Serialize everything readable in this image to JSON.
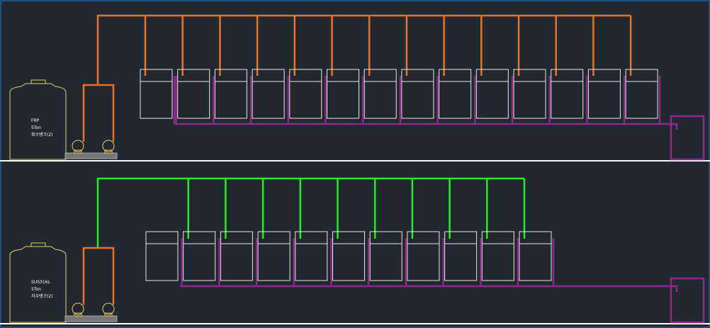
{
  "tanks": [
    {
      "material": "FRP",
      "capacity": "5Ton",
      "name": "회수탱크(2)"
    },
    {
      "material": "SUS316L",
      "capacity": "5Ton",
      "name": "자수탱크(2)"
    }
  ]
}
